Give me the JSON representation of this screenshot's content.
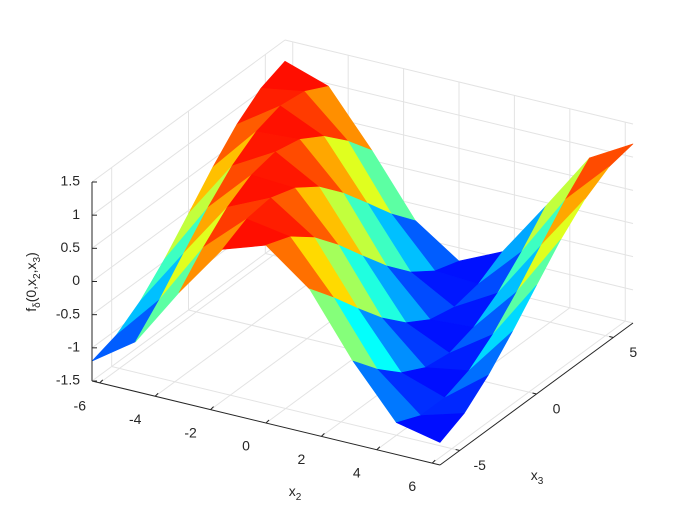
{
  "chart_data": {
    "type": "surface",
    "colormap": "jet",
    "grid": true,
    "xlabel": [
      {
        "t": "x"
      },
      {
        "sub": "2"
      }
    ],
    "ylabel": [
      {
        "t": "x"
      },
      {
        "sub": "3"
      }
    ],
    "zlabel": [
      {
        "t": "f"
      },
      {
        "sub": "δ"
      },
      {
        "t": "(0,x"
      },
      {
        "sub": "2"
      },
      {
        "t": ",x"
      },
      {
        "sub": "3"
      },
      {
        "t": ")"
      }
    ],
    "xlim": [
      -6.28,
      6.28
    ],
    "ylim": [
      -6.28,
      6.28
    ],
    "zlim": [
      -1.5,
      1.5
    ],
    "xticks": [
      -6,
      -4,
      -2,
      0,
      2,
      4,
      6
    ],
    "yticks": [
      -5,
      0,
      5
    ],
    "zticks": [
      -1.5,
      -1,
      -0.5,
      0,
      0.5,
      1,
      1.5
    ],
    "x": [
      -6.28,
      -4.71,
      -3.14,
      -1.57,
      0,
      1.57,
      3.14,
      4.71,
      6.28
    ],
    "y": [
      -6.28,
      -4.71,
      -3.14,
      -1.57,
      0,
      1.57,
      3.14,
      4.71,
      6.28
    ],
    "z": [
      [
        -1.2,
        -0.75,
        0.15,
        0.96,
        1.18,
        0.68,
        -0.25,
        -1.02,
        -1.16
      ],
      [
        -1.08,
        -0.38,
        0.56,
        1.15,
        1.04,
        0.28,
        -0.64,
        -1.18,
        -0.99
      ],
      [
        -0.83,
        0.05,
        0.9,
        1.2,
        0.76,
        -0.15,
        -0.96,
        -1.18,
        -0.68
      ],
      [
        -0.47,
        0.47,
        1.12,
        1.08,
        0.38,
        -0.56,
        -1.15,
        -1.04,
        -0.29
      ],
      [
        -0.05,
        0.83,
        1.2,
        0.83,
        -0.05,
        -0.9,
        -1.2,
        -0.76,
        0.14
      ],
      [
        0.38,
        1.08,
        1.12,
        0.47,
        -0.47,
        -1.12,
        -1.08,
        -0.38,
        0.56
      ],
      [
        0.76,
        1.2,
        0.9,
        0.05,
        -0.83,
        -1.2,
        -0.83,
        0.05,
        0.9
      ],
      [
        1.04,
        1.15,
        0.56,
        -0.38,
        -1.08,
        -1.12,
        -0.47,
        0.47,
        1.12
      ],
      [
        1.18,
        0.96,
        0.15,
        -0.75,
        -1.2,
        -0.9,
        -0.05,
        0.83,
        1.2
      ]
    ]
  }
}
